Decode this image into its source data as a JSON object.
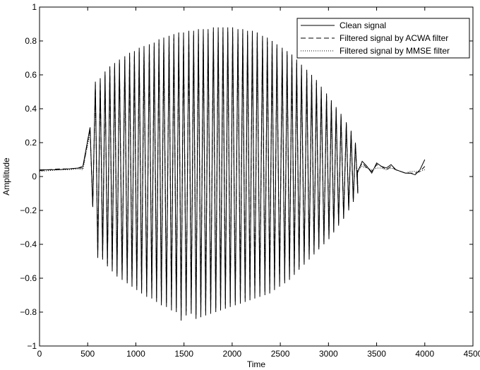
{
  "chart_data": {
    "type": "line",
    "title": "",
    "xlabel": "Time",
    "ylabel": "Amplitude",
    "xlim": [
      0,
      4500
    ],
    "ylim": [
      -1,
      1
    ],
    "xticks": [
      0,
      500,
      1000,
      1500,
      2000,
      2500,
      3000,
      3500,
      4000,
      4500
    ],
    "yticks": [
      -1,
      -0.8,
      -0.6,
      -0.4,
      -0.2,
      0,
      0.2,
      0.4,
      0.6,
      0.8,
      1
    ],
    "xtick_labels": [
      "0",
      "500",
      "1000",
      "1500",
      "2000",
      "2500",
      "3000",
      "3500",
      "4000",
      "4500"
    ],
    "ytick_labels": [
      "−1",
      "−0.8",
      "−0.6",
      "−0.4",
      "−0.2",
      "0",
      "0.2",
      "0.4",
      "0.6",
      "0.8",
      "1"
    ],
    "grid": false,
    "legend_position": "top-right",
    "legend": [
      "Clean signal",
      "Filtered signal by ACWA filter",
      "Filtered signal by MMSE filter"
    ],
    "series": [
      {
        "name": "Clean signal",
        "style": "solid",
        "color": "#000000",
        "baseline": {
          "x": [
            0,
            100,
            200,
            300,
            400,
            450
          ],
          "y": [
            0.04,
            0.04,
            0.04,
            0.045,
            0.05,
            0.06
          ]
        },
        "oscillation": {
          "peak_times": [
            525,
            580,
            630,
            680,
            730,
            780,
            830,
            885,
            935,
            985,
            1035,
            1085,
            1140,
            1190,
            1240,
            1290,
            1345,
            1395,
            1445,
            1495,
            1550,
            1600,
            1650,
            1700,
            1750,
            1805,
            1855,
            1905,
            1955,
            2005,
            2060,
            2110,
            2160,
            2210,
            2260,
            2315,
            2365,
            2415,
            2465,
            2520,
            2570,
            2620,
            2670,
            2720,
            2775,
            2825,
            2875,
            2925,
            2980,
            3030,
            3080,
            3130,
            3185,
            3235,
            3280
          ],
          "peaks": [
            0.29,
            0.56,
            0.58,
            0.62,
            0.65,
            0.67,
            0.69,
            0.71,
            0.73,
            0.74,
            0.76,
            0.77,
            0.78,
            0.79,
            0.81,
            0.82,
            0.83,
            0.84,
            0.85,
            0.85,
            0.86,
            0.86,
            0.87,
            0.87,
            0.87,
            0.88,
            0.88,
            0.88,
            0.88,
            0.88,
            0.87,
            0.87,
            0.86,
            0.86,
            0.85,
            0.83,
            0.82,
            0.8,
            0.78,
            0.76,
            0.74,
            0.72,
            0.69,
            0.66,
            0.63,
            0.6,
            0.57,
            0.53,
            0.49,
            0.45,
            0.41,
            0.37,
            0.32,
            0.27,
            0.2
          ],
          "troughs": [
            -0.18,
            -0.48,
            -0.49,
            -0.53,
            -0.56,
            -0.59,
            -0.61,
            -0.63,
            -0.65,
            -0.67,
            -0.69,
            -0.71,
            -0.72,
            -0.74,
            -0.76,
            -0.77,
            -0.79,
            -0.8,
            -0.85,
            -0.82,
            -0.81,
            -0.84,
            -0.83,
            -0.82,
            -0.81,
            -0.8,
            -0.79,
            -0.78,
            -0.77,
            -0.76,
            -0.75,
            -0.74,
            -0.73,
            -0.72,
            -0.71,
            -0.7,
            -0.69,
            -0.67,
            -0.65,
            -0.63,
            -0.61,
            -0.58,
            -0.55,
            -0.52,
            -0.49,
            -0.46,
            -0.43,
            -0.4,
            -0.37,
            -0.33,
            -0.29,
            -0.25,
            -0.2,
            -0.15,
            -0.1
          ]
        },
        "tail": {
          "x": [
            3300,
            3350,
            3400,
            3450,
            3500,
            3550,
            3600,
            3650,
            3700,
            3750,
            3800,
            3850,
            3900,
            3950,
            4000
          ],
          "y": [
            0.02,
            0.09,
            0.06,
            0.02,
            0.08,
            0.06,
            0.05,
            0.07,
            0.04,
            0.03,
            0.02,
            0.02,
            0.01,
            0.04,
            0.1
          ]
        }
      },
      {
        "name": "Filtered signal by ACWA filter",
        "style": "dashed",
        "color": "#000000",
        "baseline": {
          "x": [
            0,
            100,
            200,
            300,
            400,
            450
          ],
          "y": [
            0.035,
            0.04,
            0.045,
            0.045,
            0.05,
            0.05
          ]
        },
        "peak_scale": 0.97,
        "trough_scale": 0.97,
        "tail": {
          "x": [
            3300,
            3350,
            3400,
            3450,
            3500,
            3550,
            3600,
            3650,
            3700,
            3750,
            3800,
            3850,
            3900,
            3950,
            4000
          ],
          "y": [
            0.03,
            0.08,
            0.05,
            0.03,
            0.07,
            0.06,
            0.04,
            0.06,
            0.04,
            0.03,
            0.02,
            0.02,
            0.02,
            0.03,
            0.06
          ]
        }
      },
      {
        "name": "Filtered signal by MMSE filter",
        "style": "dotted",
        "color": "#000000",
        "baseline": {
          "x": [
            0,
            100,
            200,
            300,
            400,
            450
          ],
          "y": [
            0.03,
            0.035,
            0.04,
            0.04,
            0.045,
            0.04
          ]
        },
        "peak_scale": 0.9,
        "trough_scale": 0.9,
        "tail": {
          "x": [
            3300,
            3350,
            3400,
            3450,
            3500,
            3550,
            3600,
            3650,
            3700,
            3750,
            3800,
            3850,
            3900,
            3950,
            4000
          ],
          "y": [
            0.04,
            0.06,
            0.05,
            0.04,
            0.05,
            0.05,
            0.04,
            0.05,
            0.04,
            0.03,
            0.02,
            0.03,
            0.03,
            0.03,
            0.04
          ]
        }
      }
    ]
  }
}
